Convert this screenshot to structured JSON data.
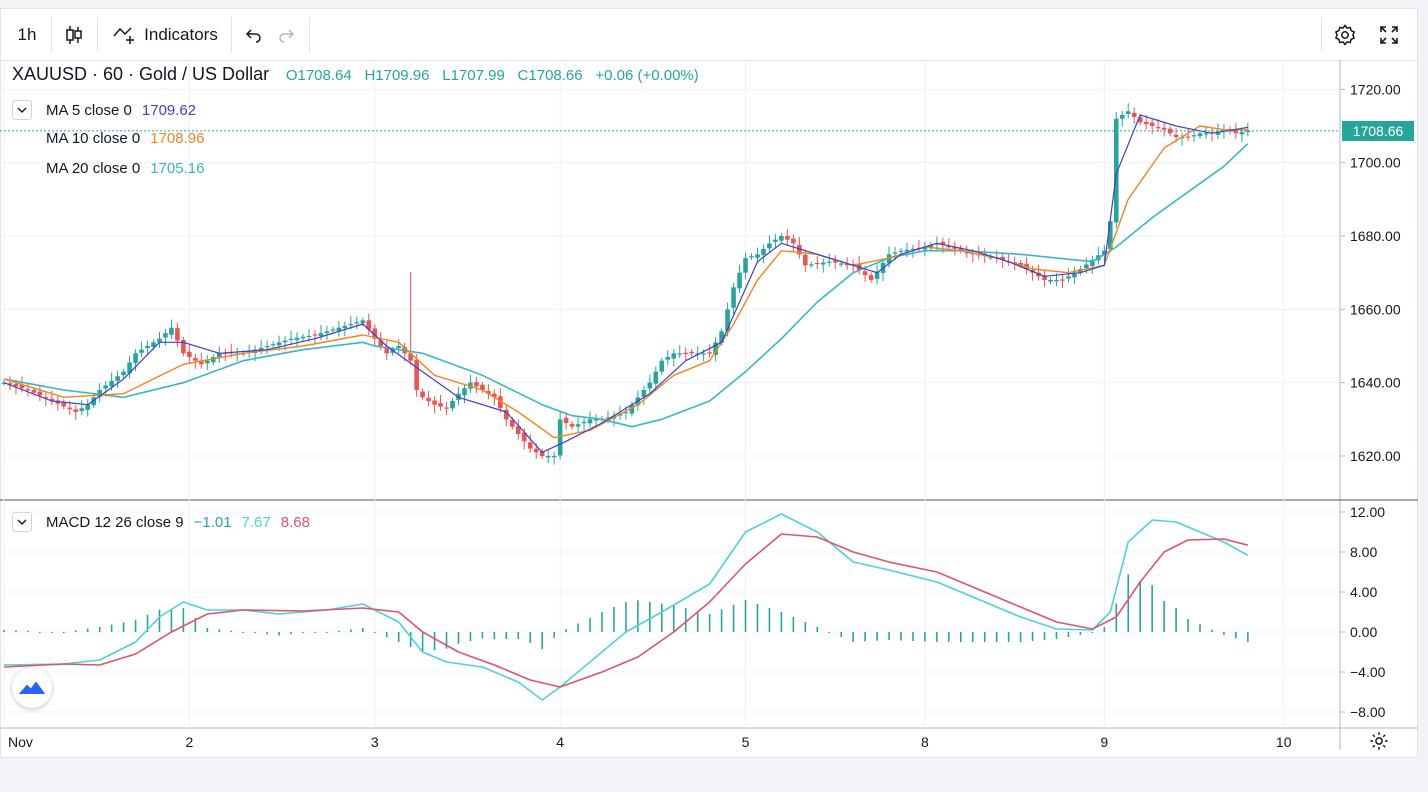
{
  "toolbar": {
    "interval_label": "1h",
    "indicators_label": "Indicators",
    "icons": [
      "candles-icon",
      "indicators-icon",
      "undo-icon",
      "redo-icon",
      "settings-icon",
      "fullscreen-icon"
    ]
  },
  "symbol": {
    "name": "XAUUSD · 60 · Gold / US Dollar",
    "open": "O1708.64",
    "high": "H1709.96",
    "low": "L1707.99",
    "close": "C1708.66",
    "change": "+0.06 (+0.00%)",
    "last_price": "1708.66"
  },
  "indicators": {
    "ma5": {
      "label": "MA 5 close 0",
      "value": "1709.62",
      "color": "#3b3fd4"
    },
    "ma10": {
      "label": "MA 10 close 0",
      "value": "1708.96",
      "color": "#f5841f"
    },
    "ma20": {
      "label": "MA 20 close 0",
      "value": "1705.16",
      "color": "#38b6c8"
    },
    "macd": {
      "label": "MACD 12 26 close 9",
      "hist": "−1.01",
      "macd": "7.67",
      "signal": "8.68",
      "hist_color": "#26a69a",
      "macd_color": "#4dd0e1",
      "signal_color": "#e05468"
    }
  },
  "colors": {
    "up": "#26a69a",
    "down": "#ef5350",
    "grid": "#eef0f4",
    "axis_text": "#131722"
  },
  "chart_data": [
    {
      "type": "candlestick",
      "title": "XAUUSD · 60 · Gold / US Dollar",
      "ylim": [
        1608,
        1728
      ],
      "yticks": [
        "1620.00",
        "1640.00",
        "1660.00",
        "1680.00",
        "1700.00",
        "1720.00"
      ],
      "xticks": [
        "Nov",
        "2",
        "3",
        "4",
        "5",
        "8",
        "9",
        "10"
      ],
      "xtick_index": [
        0,
        31,
        62,
        93,
        124,
        154,
        184,
        214
      ],
      "n_bars": 209,
      "close_path": [
        [
          0,
          1640
        ],
        [
          4,
          1638
        ],
        [
          8,
          1635
        ],
        [
          12,
          1632
        ],
        [
          14,
          1634
        ],
        [
          16,
          1638
        ],
        [
          20,
          1643
        ],
        [
          22,
          1648
        ],
        [
          24,
          1650
        ],
        [
          26,
          1652
        ],
        [
          28,
          1655
        ],
        [
          30,
          1648
        ],
        [
          33,
          1645
        ],
        [
          36,
          1648
        ],
        [
          40,
          1648
        ],
        [
          44,
          1650
        ],
        [
          48,
          1652
        ],
        [
          52,
          1653
        ],
        [
          56,
          1655
        ],
        [
          60,
          1657
        ],
        [
          62,
          1652
        ],
        [
          64,
          1648
        ],
        [
          66,
          1650
        ],
        [
          68,
          1646
        ],
        [
          69,
          1638
        ],
        [
          70,
          1636
        ],
        [
          72,
          1634
        ],
        [
          74,
          1633
        ],
        [
          76,
          1637
        ],
        [
          78,
          1640
        ],
        [
          80,
          1638
        ],
        [
          82,
          1636
        ],
        [
          84,
          1630
        ],
        [
          86,
          1626
        ],
        [
          88,
          1622
        ],
        [
          90,
          1620
        ],
        [
          92,
          1620
        ],
        [
          93,
          1630
        ],
        [
          95,
          1628
        ],
        [
          98,
          1630
        ],
        [
          100,
          1630
        ],
        [
          104,
          1632
        ],
        [
          106,
          1636
        ],
        [
          108,
          1640
        ],
        [
          110,
          1646
        ],
        [
          112,
          1648
        ],
        [
          115,
          1648
        ],
        [
          118,
          1648
        ],
        [
          120,
          1654
        ],
        [
          122,
          1666
        ],
        [
          124,
          1674
        ],
        [
          126,
          1675
        ],
        [
          128,
          1678
        ],
        [
          130,
          1680
        ],
        [
          132,
          1678
        ],
        [
          134,
          1672
        ],
        [
          138,
          1673
        ],
        [
          142,
          1672
        ],
        [
          145,
          1668
        ],
        [
          148,
          1675
        ],
        [
          150,
          1676
        ],
        [
          154,
          1677
        ],
        [
          156,
          1678
        ],
        [
          158,
          1677
        ],
        [
          162,
          1675
        ],
        [
          166,
          1674
        ],
        [
          170,
          1672
        ],
        [
          174,
          1668
        ],
        [
          177,
          1668
        ],
        [
          180,
          1671
        ],
        [
          184,
          1676
        ],
        [
          185,
          1684
        ],
        [
          186,
          1712
        ],
        [
          188,
          1714
        ],
        [
          190,
          1711
        ],
        [
          192,
          1710
        ],
        [
          194,
          1709
        ],
        [
          196,
          1707
        ],
        [
          198,
          1707
        ],
        [
          200,
          1708
        ],
        [
          202,
          1708
        ],
        [
          204,
          1709
        ],
        [
          206,
          1708
        ],
        [
          208,
          1708.66
        ]
      ],
      "ma20_path": [
        [
          0,
          1641
        ],
        [
          10,
          1638
        ],
        [
          20,
          1636
        ],
        [
          30,
          1640
        ],
        [
          40,
          1646
        ],
        [
          50,
          1649
        ],
        [
          60,
          1651
        ],
        [
          62,
          1650
        ],
        [
          70,
          1648
        ],
        [
          80,
          1642
        ],
        [
          90,
          1634
        ],
        [
          95,
          1631
        ],
        [
          100,
          1630
        ],
        [
          105,
          1628
        ],
        [
          110,
          1630
        ],
        [
          118,
          1635
        ],
        [
          124,
          1643
        ],
        [
          130,
          1652
        ],
        [
          136,
          1662
        ],
        [
          142,
          1670
        ],
        [
          148,
          1674
        ],
        [
          154,
          1676
        ],
        [
          160,
          1676
        ],
        [
          170,
          1675
        ],
        [
          176,
          1674
        ],
        [
          182,
          1673
        ],
        [
          186,
          1677
        ],
        [
          192,
          1685
        ],
        [
          198,
          1692
        ],
        [
          204,
          1699
        ],
        [
          208,
          1705.16
        ]
      ],
      "ma10_path": [
        [
          0,
          1641
        ],
        [
          10,
          1636
        ],
        [
          20,
          1637
        ],
        [
          30,
          1645
        ],
        [
          40,
          1648
        ],
        [
          50,
          1650
        ],
        [
          60,
          1653
        ],
        [
          66,
          1651
        ],
        [
          72,
          1642
        ],
        [
          80,
          1638
        ],
        [
          86,
          1632
        ],
        [
          92,
          1625
        ],
        [
          98,
          1627
        ],
        [
          106,
          1634
        ],
        [
          112,
          1642
        ],
        [
          118,
          1646
        ],
        [
          122,
          1656
        ],
        [
          126,
          1668
        ],
        [
          130,
          1676
        ],
        [
          136,
          1675
        ],
        [
          142,
          1672
        ],
        [
          148,
          1674
        ],
        [
          154,
          1677
        ],
        [
          160,
          1676
        ],
        [
          166,
          1674
        ],
        [
          172,
          1671
        ],
        [
          178,
          1670
        ],
        [
          184,
          1672
        ],
        [
          188,
          1690
        ],
        [
          194,
          1704
        ],
        [
          200,
          1710
        ],
        [
          204,
          1709
        ],
        [
          208,
          1708.96
        ]
      ],
      "ma5_path": [
        [
          0,
          1640
        ],
        [
          8,
          1635
        ],
        [
          14,
          1634
        ],
        [
          20,
          1641
        ],
        [
          26,
          1651
        ],
        [
          30,
          1651
        ],
        [
          36,
          1648
        ],
        [
          44,
          1649
        ],
        [
          52,
          1652
        ],
        [
          60,
          1656
        ],
        [
          64,
          1650
        ],
        [
          70,
          1643
        ],
        [
          76,
          1636
        ],
        [
          84,
          1632
        ],
        [
          90,
          1621
        ],
        [
          94,
          1624
        ],
        [
          100,
          1629
        ],
        [
          108,
          1637
        ],
        [
          114,
          1646
        ],
        [
          120,
          1651
        ],
        [
          126,
          1673
        ],
        [
          130,
          1678
        ],
        [
          134,
          1676
        ],
        [
          140,
          1673
        ],
        [
          146,
          1670
        ],
        [
          150,
          1675
        ],
        [
          156,
          1678
        ],
        [
          162,
          1676
        ],
        [
          168,
          1673
        ],
        [
          174,
          1669
        ],
        [
          180,
          1670
        ],
        [
          184,
          1672
        ],
        [
          186,
          1697
        ],
        [
          190,
          1713
        ],
        [
          196,
          1710
        ],
        [
          202,
          1708
        ],
        [
          208,
          1709.62
        ]
      ]
    },
    {
      "type": "macd",
      "title": "MACD 12 26 close 9",
      "ylim": [
        -9,
        13
      ],
      "yticks": [
        "12.00",
        "8.00",
        "4.00",
        "0.00",
        "−4.00",
        "−8.00"
      ],
      "macd_path": [
        [
          0,
          -3.3
        ],
        [
          10,
          -3.2
        ],
        [
          16,
          -2.8
        ],
        [
          22,
          -1
        ],
        [
          26,
          1.5
        ],
        [
          30,
          3
        ],
        [
          34,
          2.2
        ],
        [
          40,
          2.2
        ],
        [
          46,
          1.8
        ],
        [
          54,
          2.2
        ],
        [
          60,
          2.8
        ],
        [
          66,
          1
        ],
        [
          70,
          -2
        ],
        [
          74,
          -3
        ],
        [
          80,
          -3.5
        ],
        [
          86,
          -5
        ],
        [
          90,
          -6.8
        ],
        [
          93,
          -5.5
        ],
        [
          98,
          -3
        ],
        [
          104,
          0
        ],
        [
          110,
          2
        ],
        [
          118,
          4.8
        ],
        [
          124,
          10
        ],
        [
          130,
          11.8
        ],
        [
          136,
          10
        ],
        [
          142,
          7
        ],
        [
          148,
          6.2
        ],
        [
          156,
          5
        ],
        [
          162,
          3.5
        ],
        [
          170,
          1.5
        ],
        [
          176,
          0.3
        ],
        [
          182,
          0.2
        ],
        [
          185,
          2
        ],
        [
          188,
          9
        ],
        [
          192,
          11.2
        ],
        [
          196,
          11
        ],
        [
          200,
          10
        ],
        [
          204,
          9
        ],
        [
          208,
          7.67
        ]
      ],
      "signal_path": [
        [
          0,
          -3.5
        ],
        [
          10,
          -3.2
        ],
        [
          16,
          -3.3
        ],
        [
          22,
          -2.2
        ],
        [
          28,
          0
        ],
        [
          34,
          1.8
        ],
        [
          40,
          2.2
        ],
        [
          50,
          2.1
        ],
        [
          60,
          2.4
        ],
        [
          66,
          2
        ],
        [
          70,
          0
        ],
        [
          76,
          -2
        ],
        [
          82,
          -3.3
        ],
        [
          88,
          -4.8
        ],
        [
          93,
          -5.5
        ],
        [
          100,
          -4
        ],
        [
          106,
          -2.5
        ],
        [
          112,
          0
        ],
        [
          118,
          3
        ],
        [
          124,
          6.8
        ],
        [
          130,
          9.8
        ],
        [
          136,
          9.5
        ],
        [
          142,
          8
        ],
        [
          148,
          7
        ],
        [
          156,
          6
        ],
        [
          162,
          4.5
        ],
        [
          170,
          2.5
        ],
        [
          176,
          1
        ],
        [
          182,
          0.3
        ],
        [
          186,
          1.5
        ],
        [
          190,
          5
        ],
        [
          194,
          8
        ],
        [
          198,
          9.2
        ],
        [
          204,
          9.3
        ],
        [
          208,
          8.68
        ]
      ]
    }
  ]
}
